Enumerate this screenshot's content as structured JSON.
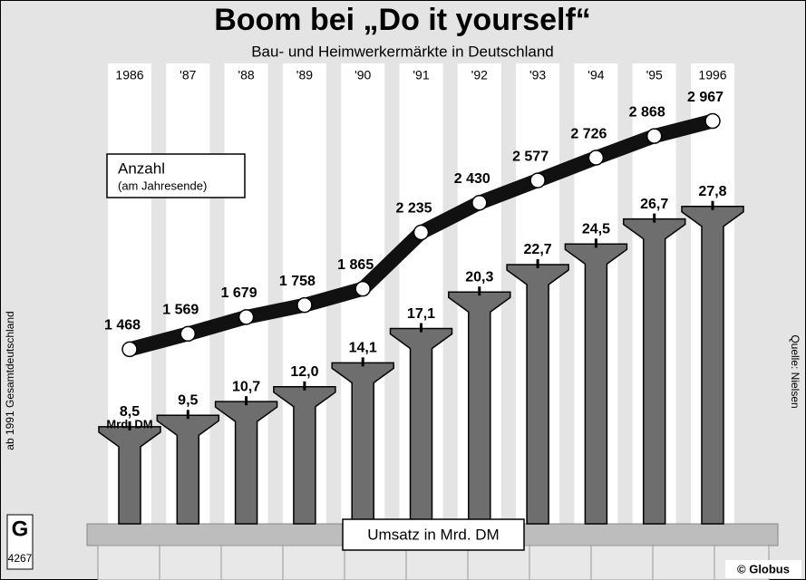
{
  "chart_data": {
    "type": "bar",
    "title": "Boom bei „Do it yourself“",
    "subtitle": "Bau- und Heimwerkermärkte in Deutschland",
    "categories": [
      "1986",
      "'87",
      "'88",
      "'89",
      "'90",
      "'91",
      "'92",
      "'93",
      "'94",
      "'95",
      "1996"
    ],
    "series": [
      {
        "name": "Anzahl",
        "subname": "(am Jahresende)",
        "type": "line",
        "color": "#111111",
        "values": [
          1468,
          1569,
          1679,
          1758,
          1865,
          2235,
          2430,
          2577,
          2726,
          2868,
          2967
        ],
        "value_labels": [
          "1 468",
          "1 569",
          "1 679",
          "1 758",
          "1 865",
          "2 235",
          "2 430",
          "2 577",
          "2 726",
          "2 868",
          "2 967"
        ]
      },
      {
        "name": "Umsatz in Mrd. DM",
        "type": "bar",
        "color": "#6e6e6e",
        "values": [
          8.5,
          9.5,
          10.7,
          12.0,
          14.1,
          17.1,
          20.3,
          22.7,
          24.5,
          26.7,
          27.8
        ],
        "value_labels": [
          "8,5",
          "9,5",
          "10,7",
          "12,0",
          "14,1",
          "17,1",
          "20,3",
          "22,7",
          "24,5",
          "26,7",
          "27,8"
        ]
      }
    ],
    "unit_note": "Mrd. DM",
    "side_note": "ab 1991 Gesamtdeutschland",
    "source": "Quelle: Nielsen",
    "credit": "© Globus",
    "logo": "G",
    "code": "4267"
  }
}
